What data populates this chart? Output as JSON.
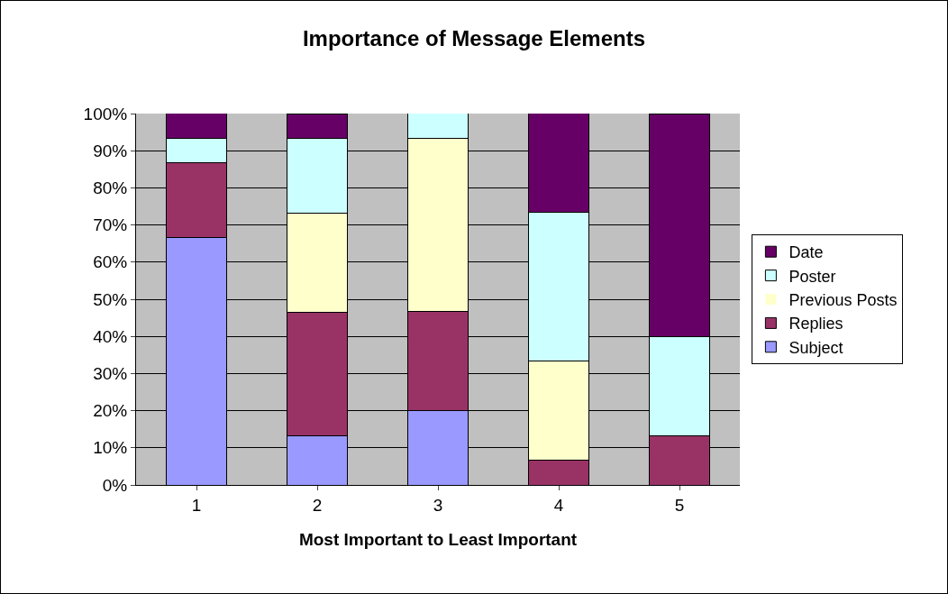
{
  "chart_data": {
    "type": "bar",
    "title": "Importance of Message Elements",
    "xlabel": "Most Important to Least Important",
    "categories": [
      "1",
      "2",
      "3",
      "4",
      "5"
    ],
    "stacked": true,
    "grid": "y",
    "legend": "right",
    "ylim": [
      0,
      100
    ],
    "yticks": [
      {
        "value": 0,
        "label": "0%"
      },
      {
        "value": 10,
        "label": "10%"
      },
      {
        "value": 20,
        "label": "20%"
      },
      {
        "value": 30,
        "label": "30%"
      },
      {
        "value": 40,
        "label": "40%"
      },
      {
        "value": 50,
        "label": "50%"
      },
      {
        "value": 60,
        "label": "60%"
      },
      {
        "value": 70,
        "label": "70%"
      },
      {
        "value": 80,
        "label": "80%"
      },
      {
        "value": 90,
        "label": "90%"
      },
      {
        "value": 100,
        "label": "100%"
      }
    ],
    "series": [
      {
        "name": "Subject",
        "color": "#9999ff",
        "values": [
          66.7,
          13.3,
          20,
          0,
          0
        ]
      },
      {
        "name": "Replies",
        "color": "#993366",
        "values": [
          20,
          33.3,
          26.7,
          6.7,
          13.3
        ]
      },
      {
        "name": "Previous Posts",
        "color": "#ffffcc",
        "values": [
          0,
          26.7,
          46.7,
          26.7,
          0
        ]
      },
      {
        "name": "Poster",
        "color": "#ccffff",
        "values": [
          6.7,
          20,
          6.7,
          40,
          26.7
        ]
      },
      {
        "name": "Date",
        "color": "#660066",
        "values": [
          6.7,
          6.7,
          0,
          26.7,
          60
        ]
      }
    ]
  }
}
